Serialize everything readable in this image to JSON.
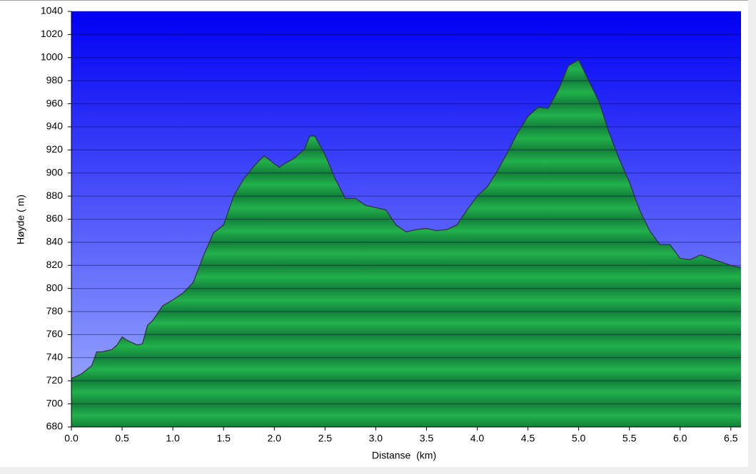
{
  "chart_data": {
    "type": "area",
    "x_label": "Distanse  (km)",
    "y_label": "Høyde ( m)",
    "x": [
      0.0,
      0.1,
      0.2,
      0.25,
      0.3,
      0.4,
      0.45,
      0.5,
      0.55,
      0.6,
      0.65,
      0.7,
      0.75,
      0.8,
      0.9,
      1.0,
      1.1,
      1.2,
      1.3,
      1.4,
      1.5,
      1.6,
      1.7,
      1.8,
      1.9,
      2.0,
      2.05,
      2.1,
      2.2,
      2.3,
      2.35,
      2.4,
      2.5,
      2.6,
      2.7,
      2.8,
      2.9,
      3.0,
      3.1,
      3.2,
      3.3,
      3.4,
      3.5,
      3.6,
      3.7,
      3.8,
      3.9,
      4.0,
      4.1,
      4.2,
      4.3,
      4.4,
      4.5,
      4.6,
      4.7,
      4.8,
      4.9,
      5.0,
      5.1,
      5.2,
      5.3,
      5.4,
      5.5,
      5.6,
      5.7,
      5.8,
      5.9,
      6.0,
      6.1,
      6.2,
      6.3,
      6.4,
      6.5,
      6.6
    ],
    "values": [
      722,
      726,
      733,
      745,
      745,
      747,
      751,
      758,
      755,
      753,
      751,
      752,
      768,
      772,
      785,
      790,
      796,
      805,
      828,
      848,
      855,
      880,
      895,
      906,
      915,
      908,
      905,
      908,
      913,
      921,
      932,
      932,
      916,
      895,
      878,
      878,
      872,
      870,
      868,
      855,
      849,
      851,
      852,
      850,
      851,
      855,
      868,
      880,
      888,
      902,
      918,
      935,
      949,
      957,
      956,
      972,
      993,
      998,
      980,
      962,
      935,
      912,
      892,
      868,
      850,
      838,
      838,
      826,
      825,
      829,
      826,
      823,
      820,
      818
    ],
    "color": "#1fa33f",
    "xlim": [
      0,
      6.6
    ],
    "ylim": [
      680,
      1040
    ],
    "xticks": [
      {
        "value": 0,
        "label": "0.0"
      },
      0.5,
      {
        "value": 1,
        "label": "1.0"
      },
      1.5,
      {
        "value": 2,
        "label": "2.0"
      },
      2.5,
      {
        "value": 3,
        "label": "3.0"
      },
      3.5,
      {
        "value": 4,
        "label": "4.0"
      },
      4.5,
      {
        "value": 5,
        "label": "5.0"
      },
      5.5,
      {
        "value": 6,
        "label": "6.0"
      },
      6.5
    ],
    "yticks": [
      680,
      700,
      720,
      740,
      760,
      780,
      800,
      820,
      840,
      860,
      880,
      900,
      920,
      940,
      960,
      980,
      1000,
      1020,
      1040
    ],
    "grid": true
  }
}
